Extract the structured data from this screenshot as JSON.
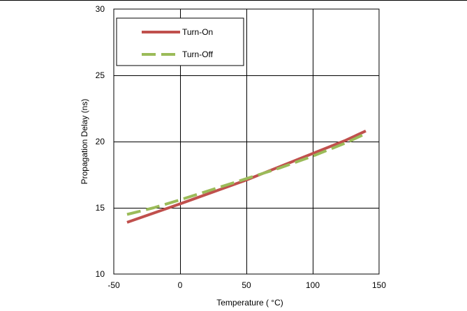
{
  "chart_data": {
    "type": "line",
    "title": "",
    "xlabel": "Temperature ( °C)",
    "ylabel": "Propagation Delay (ns)",
    "xlim": [
      -50,
      150
    ],
    "ylim": [
      10,
      30
    ],
    "xticks": [
      -50,
      0,
      50,
      100,
      150
    ],
    "yticks": [
      10,
      15,
      20,
      25,
      30
    ],
    "xtick_labels": [
      "-50",
      "0",
      "50",
      "100",
      "150"
    ],
    "ytick_labels": [
      "10",
      "15",
      "20",
      "25",
      "30"
    ],
    "grid": true,
    "legend_position": "top-left",
    "series": [
      {
        "name": "Turn-On",
        "color": "#c0504d",
        "style": "solid",
        "x": [
          -40,
          -20,
          0,
          25,
          50,
          75,
          100,
          125,
          140
        ],
        "y": [
          13.9,
          14.6,
          15.3,
          16.2,
          17.1,
          18.1,
          19.1,
          20.1,
          20.8
        ]
      },
      {
        "name": "Turn-Off",
        "color": "#9bbb59",
        "style": "dashed",
        "x": [
          -40,
          -20,
          0,
          25,
          50,
          75,
          100,
          125,
          140
        ],
        "y": [
          14.5,
          15.0,
          15.6,
          16.4,
          17.2,
          18.0,
          18.9,
          19.9,
          20.6
        ]
      }
    ]
  }
}
